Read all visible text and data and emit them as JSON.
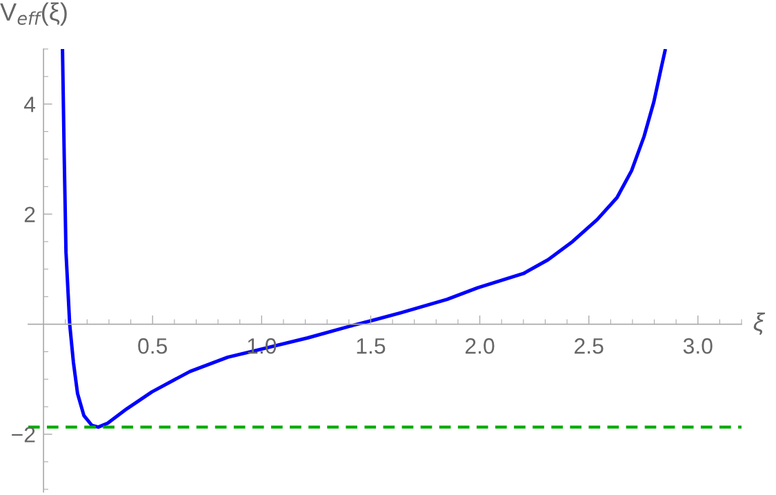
{
  "chart_data": {
    "type": "line",
    "xlabel": "ξ",
    "ylabel": "V$_{eff}$(ξ)",
    "xlim": [
      -0.07,
      3.2
    ],
    "ylim": [
      -3.05,
      5
    ],
    "xticks": [
      0.5,
      {
        "value": 1,
        "label": "1.0"
      },
      1.5,
      {
        "value": 2,
        "label": "2.0"
      },
      2.5,
      {
        "value": 3,
        "label": "3.0"
      },
      {
        "value": 0.1,
        "label": null
      },
      {
        "value": 0.2,
        "label": null
      },
      {
        "value": 0.3,
        "label": null
      },
      {
        "value": 0.4,
        "label": null
      },
      {
        "value": 0.6,
        "label": null
      },
      {
        "value": 0.7,
        "label": null
      },
      {
        "value": 0.8,
        "label": null
      },
      {
        "value": 0.9,
        "label": null
      },
      {
        "value": 1.1,
        "label": null
      },
      {
        "value": 1.2,
        "label": null
      },
      {
        "value": 1.3,
        "label": null
      },
      {
        "value": 1.4,
        "label": null
      },
      {
        "value": 1.6,
        "label": null
      },
      {
        "value": 1.7,
        "label": null
      },
      {
        "value": 1.8,
        "label": null
      },
      {
        "value": 1.9,
        "label": null
      },
      {
        "value": 2.1,
        "label": null
      },
      {
        "value": 2.2,
        "label": null
      },
      {
        "value": 2.3,
        "label": null
      },
      {
        "value": 2.4,
        "label": null
      },
      {
        "value": 2.6,
        "label": null
      },
      {
        "value": 2.7,
        "label": null
      },
      {
        "value": 2.8,
        "label": null
      },
      {
        "value": 2.9,
        "label": null
      },
      {
        "value": 3.1,
        "label": null
      },
      {
        "value": 3.2,
        "label": null
      }
    ],
    "yticks": [
      -2,
      2,
      4,
      {
        "value": -3,
        "label": null
      },
      {
        "value": -2.5,
        "label": null
      },
      {
        "value": -1.5,
        "label": null
      },
      {
        "value": -1,
        "label": null
      },
      {
        "value": -0.5,
        "label": null
      },
      {
        "value": 0.5,
        "label": null
      },
      {
        "value": 1,
        "label": null
      },
      {
        "value": 1.5,
        "label": null
      },
      {
        "value": 2.5,
        "label": null
      },
      {
        "value": 3,
        "label": null
      },
      {
        "value": 3.5,
        "label": null
      },
      {
        "value": 4.5,
        "label": null
      },
      {
        "value": 5,
        "label": null
      }
    ],
    "grid": false,
    "legend": false,
    "marker": "none",
    "line_style": "solid",
    "series": [
      {
        "color": "#0000ff",
        "x": [
          0.087,
          0.095,
          0.103,
          0.12,
          0.137,
          0.156,
          0.185,
          0.222,
          0.251,
          0.294,
          0.381,
          0.497,
          0.671,
          0.845,
          1.003,
          1.21,
          1.42,
          1.5,
          1.64,
          1.85,
          1.99,
          2.2,
          2.313,
          2.425,
          2.538,
          2.629,
          2.696,
          2.753,
          2.798,
          2.832,
          2.851
        ],
        "values": [
          5.0,
          3.03,
          1.31,
          0,
          -0.69,
          -1.26,
          -1.66,
          -1.84,
          -1.87,
          -1.8,
          -1.54,
          -1.23,
          -0.86,
          -0.6,
          -0.45,
          -0.25,
          -0.02,
          0.06,
          0.21,
          0.45,
          0.66,
          0.92,
          1.17,
          1.5,
          1.9,
          2.3,
          2.79,
          3.41,
          4.04,
          4.66,
          5.0
        ]
      }
    ],
    "ref_lines": [
      {
        "axis": "y",
        "value": -1.87,
        "color": "#00aa00",
        "line_style": "dashed"
      }
    ]
  }
}
